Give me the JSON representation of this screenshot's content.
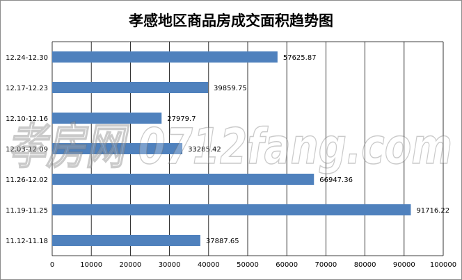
{
  "chart_data": {
    "type": "bar",
    "orientation": "horizontal",
    "title": "孝感地区商品房成交面积趋势图",
    "categories": [
      "12.24-12.30",
      "12.17-12.23",
      "12.10-12.16",
      "12.03-12.09",
      "11.26-12.02",
      "11.19-11.25",
      "11.12-11.18"
    ],
    "values": [
      57625.87,
      39859.75,
      27979.7,
      33285.42,
      66947.36,
      91716.22,
      37887.65
    ],
    "value_labels": [
      "57625.87",
      "39859.75",
      "27979.7",
      "33285.42",
      "66947.36",
      "91716.22",
      "37887.65"
    ],
    "xlim": [
      0,
      100000
    ],
    "xticks": [
      "0",
      "10000",
      "20000",
      "30000",
      "40000",
      "50000",
      "60000",
      "70000",
      "80000",
      "90000",
      "100000"
    ],
    "grid": true,
    "bar_color": "#4f81bd"
  },
  "watermark": {
    "text": "孝房网 0712fang.com"
  }
}
